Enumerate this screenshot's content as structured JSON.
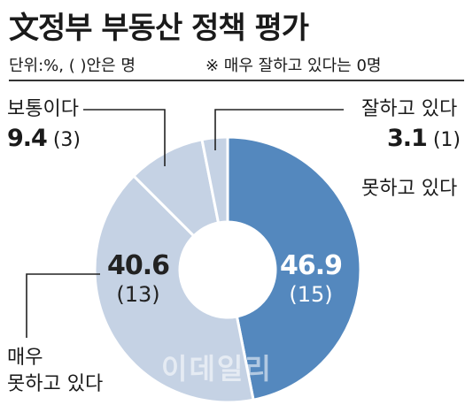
{
  "header": {
    "title": "文정부 부동산 정책 평가",
    "unit_note": "단위:%, (   )안은 명",
    "footnote": "※ 매우 잘하고 있다는 0명"
  },
  "watermark": "이데일리",
  "chart_data": {
    "type": "pie",
    "donut": true,
    "title": "文정부 부동산 정책 평가",
    "slices": [
      {
        "label": "못하고 있다",
        "value": 46.9,
        "count": 15,
        "count_text": "(15)",
        "color": "#5488be"
      },
      {
        "label": "매우 못하고 있다",
        "value": 40.6,
        "count": 13,
        "count_text": "(13)",
        "color": "#c5d2e4"
      },
      {
        "label": "보통이다",
        "value": 9.4,
        "count": 3,
        "count_text": "(3)",
        "color": "#c5d2e4"
      },
      {
        "label": "잘하고 있다",
        "value": 3.1,
        "count": 1,
        "count_text": "(1)",
        "color": "#c5d2e4"
      }
    ]
  },
  "labels": {
    "good": {
      "text": "잘하고 있다",
      "value": "3.1",
      "count": "(1)"
    },
    "bad": {
      "text": "못하고 있다"
    },
    "neutral": {
      "text": "보통이다",
      "value": "9.4",
      "count": "(3)"
    },
    "very_bad": {
      "line1": "매우",
      "line2": "못하고 있다"
    }
  }
}
